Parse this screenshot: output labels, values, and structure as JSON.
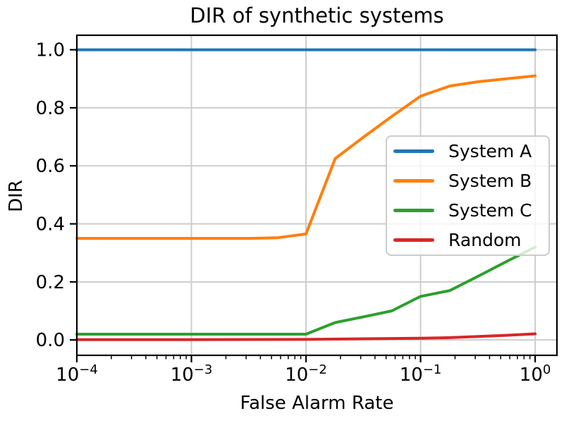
{
  "chart_data": {
    "type": "line",
    "title": "DIR of synthetic systems",
    "xlabel": "False Alarm Rate",
    "ylabel": "DIR",
    "xscale": "log",
    "xlim": [
      0.0001,
      1.55
    ],
    "ylim": [
      -0.053,
      1.05
    ],
    "grid": true,
    "legend_position": "center right",
    "x_tick_exponents": [
      -4,
      -3,
      -2,
      -1,
      0
    ],
    "y_ticks": {
      "values": [
        0.0,
        0.2,
        0.4,
        0.6,
        0.8,
        1.0
      ],
      "labels": [
        "0.0",
        "0.2",
        "0.4",
        "0.6",
        "0.8",
        "1.0"
      ]
    },
    "series": [
      {
        "name": "System A",
        "color": "#1f77b4",
        "x": [
          0.0001,
          1.0
        ],
        "y": [
          1.0,
          1.0
        ]
      },
      {
        "name": "System B",
        "color": "#ff7f0e",
        "x": [
          0.0001,
          0.001,
          0.0032,
          0.0056,
          0.01,
          0.018,
          0.032,
          0.056,
          0.1,
          0.18,
          0.32,
          0.56,
          1.0
        ],
        "y": [
          0.35,
          0.35,
          0.35,
          0.352,
          0.365,
          0.625,
          0.7,
          0.77,
          0.84,
          0.875,
          0.89,
          0.9,
          0.91
        ]
      },
      {
        "name": "System C",
        "color": "#2ca02c",
        "x": [
          0.0001,
          0.001,
          0.01,
          0.018,
          0.032,
          0.056,
          0.1,
          0.18,
          0.32,
          0.56,
          1.0
        ],
        "y": [
          0.02,
          0.02,
          0.02,
          0.06,
          0.08,
          0.1,
          0.15,
          0.17,
          0.22,
          0.27,
          0.32
        ]
      },
      {
        "name": "Random",
        "color": "#d62728",
        "x": [
          0.0001,
          0.001,
          0.01,
          0.032,
          0.1,
          0.18,
          0.32,
          0.56,
          1.0
        ],
        "y": [
          0.001,
          0.001,
          0.002,
          0.004,
          0.006,
          0.008,
          0.012,
          0.016,
          0.021
        ]
      }
    ]
  },
  "style": {
    "grid_color": "#cdcdcd",
    "spine_color": "#000000",
    "tick_color": "#000000",
    "legend_border_color": "#cccccc",
    "background_color": "#ffffff"
  }
}
